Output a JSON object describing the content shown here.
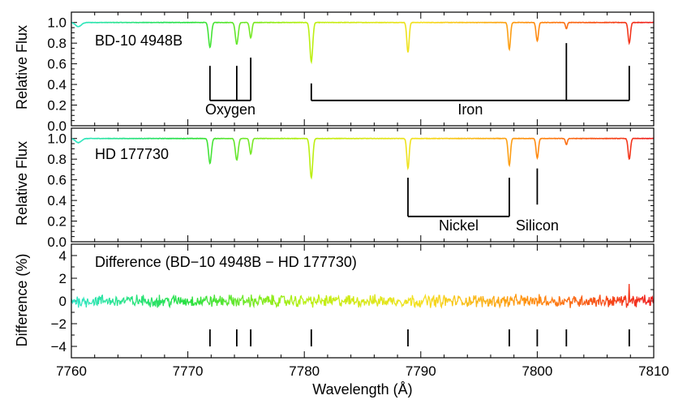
{
  "chart_data": [
    {
      "type": "line",
      "panel_label": "BD-10 4948B",
      "ylabel": "Relative Flux",
      "ylim": [
        0,
        1.1
      ],
      "yticks": [
        "0.0",
        "0.2",
        "0.4",
        "0.6",
        "0.8",
        "1.0"
      ],
      "xlim": [
        7760,
        7810
      ],
      "continuum": 1.0,
      "lines": [
        {
          "x": 7760.6,
          "depth": 0.04,
          "width": 0.25
        },
        {
          "x": 7771.9,
          "depth": 0.24,
          "width": 0.12
        },
        {
          "x": 7774.2,
          "depth": 0.21,
          "width": 0.12
        },
        {
          "x": 7775.4,
          "depth": 0.15,
          "width": 0.1
        },
        {
          "x": 7780.6,
          "depth": 0.38,
          "width": 0.12
        },
        {
          "x": 7788.9,
          "depth": 0.29,
          "width": 0.1
        },
        {
          "x": 7797.6,
          "depth": 0.26,
          "width": 0.1
        },
        {
          "x": 7800.0,
          "depth": 0.18,
          "width": 0.1
        },
        {
          "x": 7802.5,
          "depth": 0.06,
          "width": 0.08
        },
        {
          "x": 7807.9,
          "depth": 0.2,
          "width": 0.1
        }
      ],
      "annotations": [
        {
          "label": "Oxygen",
          "markers": [
            7771.9,
            7774.2,
            7775.4
          ]
        },
        {
          "label": "Iron",
          "markers": [
            7780.6,
            7802.5,
            7807.9
          ]
        }
      ]
    },
    {
      "type": "line",
      "panel_label": "HD 177730",
      "ylabel": "Relative Flux",
      "ylim": [
        0,
        1.1
      ],
      "yticks": [
        "0.0",
        "0.2",
        "0.4",
        "0.6",
        "0.8",
        "1.0"
      ],
      "xlim": [
        7760,
        7810
      ],
      "continuum": 1.0,
      "lines": [
        {
          "x": 7760.6,
          "depth": 0.04,
          "width": 0.25
        },
        {
          "x": 7771.9,
          "depth": 0.24,
          "width": 0.12
        },
        {
          "x": 7774.2,
          "depth": 0.21,
          "width": 0.12
        },
        {
          "x": 7775.4,
          "depth": 0.15,
          "width": 0.1
        },
        {
          "x": 7780.6,
          "depth": 0.38,
          "width": 0.12
        },
        {
          "x": 7788.9,
          "depth": 0.29,
          "width": 0.1
        },
        {
          "x": 7797.6,
          "depth": 0.26,
          "width": 0.1
        },
        {
          "x": 7800.0,
          "depth": 0.19,
          "width": 0.1
        },
        {
          "x": 7802.5,
          "depth": 0.06,
          "width": 0.08
        },
        {
          "x": 7807.9,
          "depth": 0.2,
          "width": 0.1
        }
      ],
      "annotations": [
        {
          "label": "Nickel",
          "markers": [
            7788.9,
            7797.6
          ]
        },
        {
          "label": "Silicon",
          "markers": [
            7800.0
          ]
        }
      ]
    },
    {
      "type": "line",
      "panel_label": "Difference (BD−10 4948B − HD 177730)",
      "ylabel": "Difference (%)",
      "xlabel": "Wavelength (Å)",
      "ylim": [
        -5,
        5
      ],
      "yticks": [
        "−4",
        "−2",
        "0",
        "2",
        "4"
      ],
      "ytick_values": [
        -4,
        -2,
        0,
        2,
        4
      ],
      "xlim": [
        7760,
        7810
      ],
      "xticks": [
        "7760",
        "7770",
        "7780",
        "7790",
        "7800",
        "7810"
      ],
      "xtick_values": [
        7760,
        7770,
        7780,
        7790,
        7800,
        7810
      ],
      "noise_amplitude_percent": 0.4,
      "spike": {
        "x": 7807.9,
        "value": 1.5
      },
      "markers": [
        7771.9,
        7774.2,
        7775.4,
        7780.6,
        7788.9,
        7797.6,
        7800.0,
        7802.5,
        7807.9
      ],
      "marker_range": [
        -2.5,
        -4.0
      ]
    }
  ],
  "colors": {
    "spectrum_gradient": [
      "#2ee6c8",
      "#28e040",
      "#b8f010",
      "#f5e020",
      "#ff8a10",
      "#f02020"
    ],
    "frame": "#000000"
  }
}
